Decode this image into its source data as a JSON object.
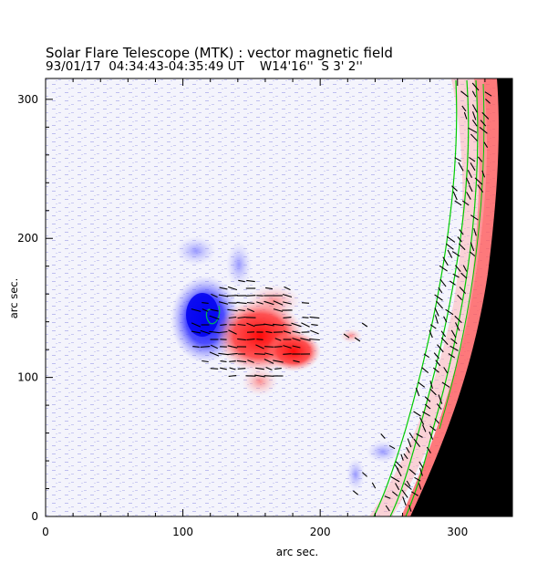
{
  "title": "Solar Flare Telescope (MTK) : vector magnetic field",
  "subtitle": "93/01/17  04:34:43-04:35:49 UT    W14'16''  S 3' 2''",
  "chart_data": {
    "type": "heatmap",
    "xlabel": "arc sec.",
    "ylabel": "arc sec.",
    "xlim": [
      0,
      340
    ],
    "ylim": [
      0,
      315
    ],
    "x_ticks": [
      0,
      100,
      200,
      300
    ],
    "y_ticks": [
      0,
      100,
      200,
      300
    ],
    "grid": false,
    "colors": {
      "negative_polarity": "#2222ff",
      "positive_polarity": "#ff2222",
      "contour": "#00cc00",
      "off_limb": "#000000"
    }
  }
}
